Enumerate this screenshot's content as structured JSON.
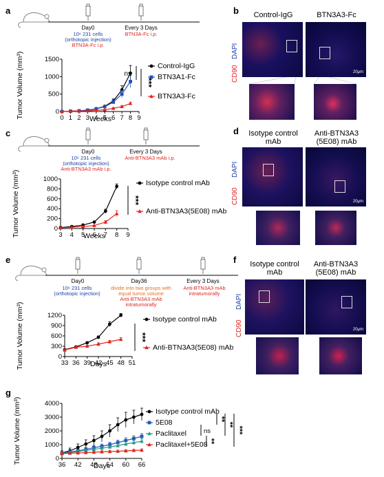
{
  "panels": {
    "a": {
      "label": "a",
      "timeline": {
        "day0": "Day0",
        "every": "Every 3 Days",
        "cells1": "10⁶ 231 cells",
        "cells2": "(orthotopic injection)",
        "treat1": "BTN3A-Fc i.p.",
        "treat2": "BTN3A-Fc i.p."
      }
    },
    "b": {
      "label": "b",
      "col1": "Control-IgG",
      "col2": "BTN3A3-Fc",
      "dapi": "DAPI",
      "cd90": "CD90",
      "scale": "20μm"
    },
    "c": {
      "label": "c",
      "timeline": {
        "day0": "Day0",
        "every": "Every 3 Days",
        "cells1": "10⁶ 231 cells",
        "cells2": "(orthotopic injection)",
        "treat1": "Anti-BTN3A3 mAb i.p.",
        "treat2": "Anti-BTN3A3 mAb i.p."
      }
    },
    "d": {
      "label": "d",
      "col1a": "Isotype control",
      "col1b": "mAb",
      "col2a": "Anti-BTN3A3",
      "col2b": "(5E08) mAb",
      "dapi": "DAPI",
      "cd90": "CD90",
      "scale": "20μm"
    },
    "e": {
      "label": "e",
      "timeline": {
        "day0": "Day0",
        "day36": "Day36",
        "every": "Every 3 Days",
        "cells1": "10⁶ 231 cells",
        "cells2": "(orthotopic injection)",
        "mid1": "divide into two groups with",
        "mid2": "equal tumor volume",
        "mid3": "Anti-BTN3A3 mAb",
        "mid4": "intratumorally",
        "right1": "Anti-BTN3A3 mAb",
        "right2": "intratumorally"
      }
    },
    "f": {
      "label": "f",
      "col1a": "Isotype control",
      "col1b": "mAb",
      "col2a": "Anti-BTN3A3",
      "col2b": "(5E08) mAb",
      "dapi": "DAPI",
      "cd90": "CD90",
      "scale": "20μm"
    },
    "g": {
      "label": "g"
    }
  },
  "chart_data": [
    {
      "id": "a",
      "type": "line",
      "xlabel": "Weeks",
      "ylabel": "Tumor Volume (mm³)",
      "xlim": [
        0,
        9
      ],
      "ylim": [
        0,
        1500
      ],
      "xticks": [
        0,
        1,
        2,
        3,
        4,
        5,
        6,
        7,
        8,
        9
      ],
      "yticks": [
        0,
        500,
        1000,
        1500
      ],
      "series": [
        {
          "name": "Control-IgG",
          "color": "#000000",
          "marker": "circle",
          "x": [
            0,
            1,
            2,
            3,
            4,
            5,
            6,
            7,
            8
          ],
          "y": [
            0,
            10,
            20,
            40,
            80,
            150,
            300,
            620,
            1100
          ],
          "err": [
            0,
            5,
            8,
            10,
            20,
            30,
            60,
            120,
            220
          ]
        },
        {
          "name": "BTN3A1-Fc",
          "color": "#1f4fbf",
          "marker": "square",
          "x": [
            0,
            1,
            2,
            3,
            4,
            5,
            6,
            7,
            8
          ],
          "y": [
            0,
            10,
            20,
            40,
            75,
            140,
            270,
            500,
            860
          ],
          "err": [
            0,
            5,
            8,
            10,
            20,
            30,
            50,
            100,
            180
          ]
        },
        {
          "name": "BTN3A3-Fc",
          "color": "#e2241f",
          "marker": "triangle",
          "x": [
            0,
            1,
            2,
            3,
            4,
            5,
            6,
            7,
            8
          ],
          "y": [
            0,
            10,
            15,
            20,
            35,
            50,
            90,
            140,
            230
          ],
          "err": [
            0,
            4,
            5,
            8,
            10,
            12,
            20,
            30,
            40
          ]
        }
      ],
      "annotations": [
        "ns",
        "***"
      ]
    },
    {
      "id": "c",
      "type": "line",
      "xlabel": "Weeks",
      "ylabel": "Tumor Volume (mm³)",
      "xlim": [
        3,
        9
      ],
      "ylim": [
        0,
        1000
      ],
      "xticks": [
        3,
        4,
        5,
        6,
        7,
        8,
        9
      ],
      "yticks": [
        0,
        200,
        400,
        600,
        800,
        1000
      ],
      "series": [
        {
          "name": "Isotype control mAb",
          "color": "#000000",
          "marker": "circle",
          "x": [
            3,
            4,
            5,
            6,
            7,
            8
          ],
          "y": [
            20,
            40,
            70,
            130,
            350,
            850
          ],
          "err": [
            5,
            8,
            10,
            20,
            40,
            50
          ]
        },
        {
          "name": "Anti-BTN3A3(5E08) mAb",
          "color": "#e2241f",
          "marker": "triangle",
          "x": [
            3,
            4,
            5,
            6,
            7,
            8
          ],
          "y": [
            15,
            25,
            40,
            60,
            130,
            300
          ],
          "err": [
            5,
            5,
            8,
            10,
            30,
            60
          ]
        }
      ],
      "annotations": [
        "***"
      ]
    },
    {
      "id": "e",
      "type": "line",
      "xlabel": "Days",
      "ylabel": "Tumor Volume (mm³)",
      "xlim": [
        33,
        51
      ],
      "ylim": [
        0,
        1200
      ],
      "xticks": [
        33,
        36,
        39,
        42,
        45,
        48,
        51
      ],
      "yticks": [
        0,
        300,
        600,
        900,
        1200
      ],
      "series": [
        {
          "name": "Isotype control mAb",
          "color": "#000000",
          "marker": "circle",
          "x": [
            33,
            36,
            39,
            42,
            45,
            48
          ],
          "y": [
            200,
            280,
            400,
            560,
            940,
            1200
          ],
          "err": [
            20,
            25,
            30,
            40,
            70,
            50
          ]
        },
        {
          "name": "Anti-BTN3A3(5E08) mAb",
          "color": "#e2241f",
          "marker": "triangle",
          "x": [
            33,
            36,
            39,
            42,
            45,
            48
          ],
          "y": [
            190,
            270,
            300,
            360,
            430,
            500
          ],
          "err": [
            20,
            25,
            30,
            40,
            40,
            50
          ]
        }
      ],
      "annotations": [
        "***"
      ]
    },
    {
      "id": "g",
      "type": "line",
      "xlabel": "Days",
      "ylabel": "Tumor Volume (mm³)",
      "xlim": [
        36,
        66
      ],
      "ylim": [
        0,
        4000
      ],
      "xticks": [
        36,
        42,
        48,
        54,
        60,
        66
      ],
      "yticks": [
        0,
        1000,
        2000,
        3000,
        4000
      ],
      "series": [
        {
          "name": "Isotype control mAb",
          "color": "#000000",
          "marker": "circle",
          "x": [
            36,
            39,
            42,
            45,
            48,
            51,
            54,
            57,
            60,
            63,
            66
          ],
          "y": [
            400,
            550,
            800,
            1050,
            1300,
            1600,
            2000,
            2450,
            2800,
            3000,
            3200
          ],
          "err": [
            150,
            200,
            250,
            300,
            350,
            400,
            450,
            500,
            550,
            500,
            450
          ]
        },
        {
          "name": "5E08",
          "color": "#2058b4",
          "marker": "square",
          "x": [
            36,
            39,
            42,
            45,
            48,
            51,
            54,
            57,
            60,
            63,
            66
          ],
          "y": [
            380,
            470,
            560,
            660,
            780,
            880,
            1000,
            1150,
            1300,
            1450,
            1600
          ],
          "err": [
            100,
            100,
            120,
            130,
            150,
            160,
            170,
            180,
            200,
            200,
            200
          ]
        },
        {
          "name": "Paclitaxel",
          "color": "#2a9a8a",
          "marker": "triangle",
          "x": [
            36,
            39,
            42,
            45,
            48,
            51,
            54,
            57,
            60,
            63,
            66
          ],
          "y": [
            370,
            430,
            500,
            580,
            660,
            740,
            830,
            930,
            1050,
            1150,
            1250
          ],
          "err": [
            80,
            80,
            90,
            100,
            110,
            120,
            130,
            140,
            150,
            150,
            160
          ]
        },
        {
          "name": "Paclitaxel+5E08",
          "color": "#e2241f",
          "marker": "triangle",
          "x": [
            36,
            39,
            42,
            45,
            48,
            51,
            54,
            57,
            60,
            63,
            66
          ],
          "y": [
            350,
            380,
            400,
            420,
            450,
            480,
            500,
            520,
            550,
            580,
            600
          ],
          "err": [
            60,
            60,
            60,
            60,
            70,
            70,
            70,
            80,
            80,
            80,
            90
          ]
        }
      ],
      "annotations": [
        "**",
        "**",
        "***",
        "ns",
        "**"
      ]
    }
  ]
}
